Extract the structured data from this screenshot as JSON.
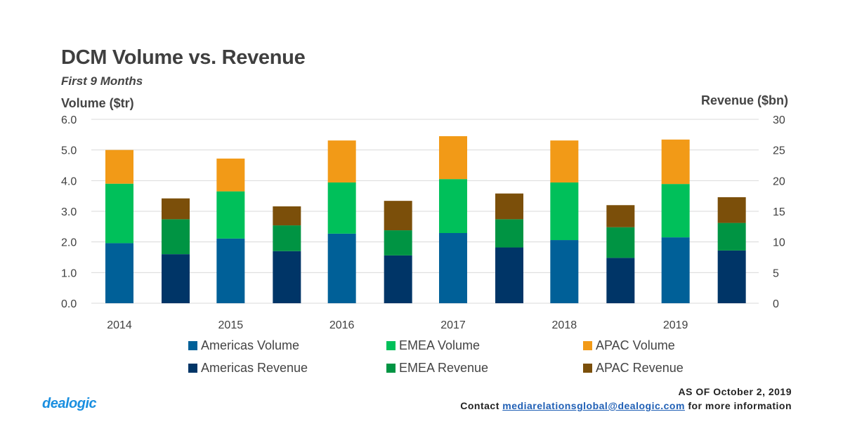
{
  "header": {
    "title": "DCM Volume vs. Revenue",
    "subtitle": "First 9 Months",
    "y_left_label": "Volume ($tr)",
    "y_right_label": "Revenue ($bn)"
  },
  "chart_data": {
    "type": "bar",
    "stacked": true,
    "title": "DCM Volume vs. Revenue",
    "subtitle": "First 9 Months",
    "categories": [
      "2014",
      "2015",
      "2016",
      "2017",
      "2018",
      "2019"
    ],
    "ylabel": "Volume ($tr)",
    "ylabel_right": "Revenue ($bn)",
    "ylim": [
      0,
      6
    ],
    "ylim_right": [
      0,
      30
    ],
    "yticks": [
      "0.0",
      "1.0",
      "2.0",
      "3.0",
      "4.0",
      "5.0",
      "6.0"
    ],
    "yticks_right": [
      "0",
      "5",
      "10",
      "15",
      "20",
      "25",
      "30"
    ],
    "grid": true,
    "legend_position": "bottom",
    "volume_series": [
      {
        "name": "Americas Volume",
        "color": "#006098",
        "values": [
          1.96,
          2.11,
          2.27,
          2.29,
          2.06,
          2.15
        ]
      },
      {
        "name": "EMEA Volume",
        "color": "#00c05a",
        "values": [
          1.94,
          1.54,
          1.67,
          1.76,
          1.88,
          1.74
        ]
      },
      {
        "name": "APAC Volume",
        "color": "#f29a17",
        "values": [
          1.1,
          1.07,
          1.37,
          1.4,
          1.37,
          1.45
        ]
      }
    ],
    "revenue_series": [
      {
        "name": "Americas Revenue",
        "color": "#003567",
        "values": [
          8.0,
          8.5,
          7.8,
          9.1,
          7.4,
          8.6
        ]
      },
      {
        "name": "EMEA Revenue",
        "color": "#009443",
        "values": [
          5.7,
          4.2,
          4.1,
          4.6,
          5.0,
          4.5
        ]
      },
      {
        "name": "APAC Revenue",
        "color": "#7b4f0a",
        "values": [
          3.4,
          3.1,
          4.8,
          4.2,
          3.6,
          4.2
        ]
      }
    ]
  },
  "legend": [
    {
      "label": "Americas Volume",
      "color": "#006098"
    },
    {
      "label": "EMEA Volume",
      "color": "#00c05a"
    },
    {
      "label": "APAC Volume",
      "color": "#f29a17"
    },
    {
      "label": "Americas Revenue",
      "color": "#003567"
    },
    {
      "label": "EMEA Revenue",
      "color": "#009443"
    },
    {
      "label": "APAC Revenue",
      "color": "#7b4f0a"
    }
  ],
  "footer": {
    "as_of": "AS OF October 2, 2019",
    "contact_prefix": "Contact",
    "contact_email": "mediarelationsglobal@dealogic.com",
    "contact_suffix": "for more information"
  },
  "logo": {
    "text": "dealogic"
  }
}
